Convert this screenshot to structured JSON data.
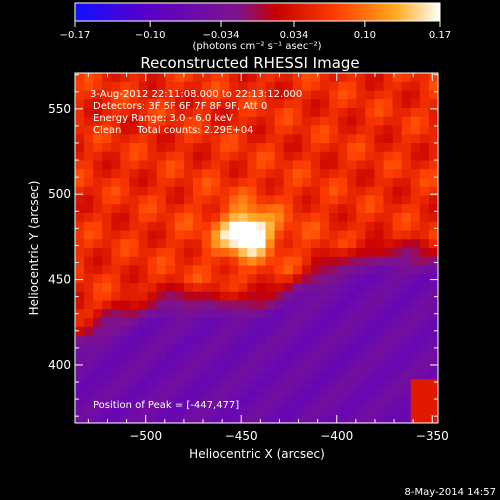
{
  "chart_data": {
    "type": "heatmap",
    "title": "Reconstructed RHESSI Image",
    "xlabel": "Heliocentric X (arcsec)",
    "ylabel": "Heliocentric Y (arcsec)",
    "xlim": [
      -537,
      -347
    ],
    "ylim": [
      366,
      571
    ],
    "x_ticks": [
      -500,
      -450,
      -400,
      -350
    ],
    "y_ticks": [
      400,
      450,
      500,
      550
    ],
    "x_tick_labels": [
      "−500",
      "−450",
      "−400",
      "−350"
    ],
    "y_tick_labels": [
      "400",
      "450",
      "500",
      "550"
    ],
    "colorbar": {
      "min": -0.17,
      "max": 0.17,
      "ticks": [
        -0.17,
        -0.1,
        -0.034,
        0.034,
        0.1,
        0.17
      ],
      "tick_labels": [
        "−0.17",
        "−0.10",
        "−0.034",
        "0.034",
        "0.10",
        "0.17"
      ],
      "unit_label": "(photons cm⁻² s⁻¹ asec⁻²)",
      "colors": [
        "#1010ff",
        "#5a00c8",
        "#7e148c",
        "#c80000",
        "#ff4000",
        "#ffaa20",
        "#ffffff"
      ]
    },
    "annotations": [
      "3-Aug-2012 22:11:08.000 to 22:13:12.000",
      "Detectors: 3F 5F 6F 7F 8F 9F, Att 0",
      "Energy Range: 3.0 - 6.0 keV",
      "Clean     Total counts: 2.29E+04",
      "Position of Peak = [-447,477]"
    ],
    "peak": {
      "x": -447,
      "y": 477,
      "value": 0.17
    },
    "footer": "8-May-2014 14:57"
  }
}
